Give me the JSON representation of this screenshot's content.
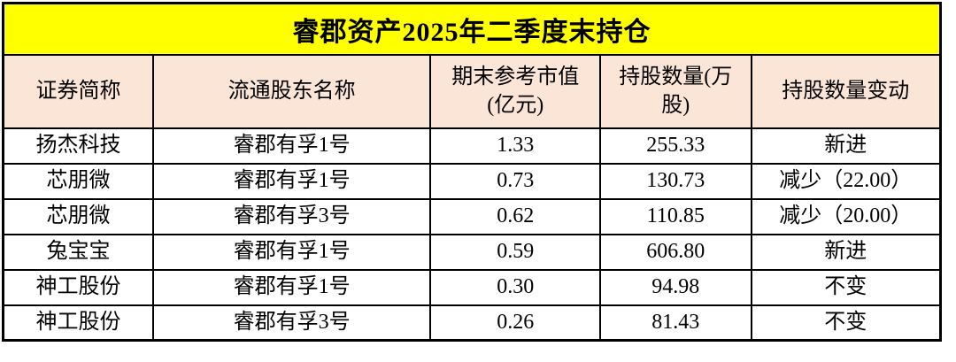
{
  "title": "睿郡资产2025年二季度末持仓",
  "colors": {
    "title_bg": "#FFFF00",
    "header_bg": "#FBE5D6",
    "border_color": "#000000",
    "text_color": "#000000"
  },
  "header_lines": [
    "证券简称",
    "流通股东名称",
    "期末参考市值\n(亿元)",
    "持股数量(万\n股)",
    "持股数量变动"
  ],
  "chart_data": {
    "type": "table",
    "title": "睿郡资产2025年二季度末持仓",
    "columns": [
      "证券简称",
      "流通股东名称",
      "期末参考市值(亿元)",
      "持股数量(万股)",
      "持股数量变动"
    ],
    "rows": [
      [
        "扬杰科技",
        "睿郡有孚1号",
        "1.33",
        "255.33",
        "新进"
      ],
      [
        "芯朋微",
        "睿郡有孚1号",
        "0.73",
        "130.73",
        "减少（22.00）"
      ],
      [
        "芯朋微",
        "睿郡有孚3号",
        "0.62",
        "110.85",
        "减少（20.00）"
      ],
      [
        "兔宝宝",
        "睿郡有孚1号",
        "0.59",
        "606.80",
        "新进"
      ],
      [
        "神工股份",
        "睿郡有孚1号",
        "0.30",
        "94.98",
        "不变"
      ],
      [
        "神工股份",
        "睿郡有孚3号",
        "0.26",
        "81.43",
        "不变"
      ]
    ]
  }
}
